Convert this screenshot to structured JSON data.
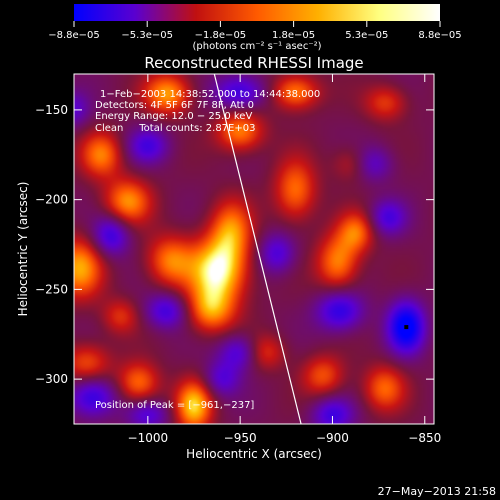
{
  "chart_data": {
    "type": "heatmap",
    "title": "Reconstructed RHESSI Image",
    "xlabel": "Heliocentric X (arcsec)",
    "ylabel": "Heliocentric Y (arcsec)",
    "xlim": [
      -1040,
      -845
    ],
    "ylim": [
      -325,
      -130
    ],
    "xticks": [
      -1000,
      -950,
      -900,
      -850
    ],
    "yticks": [
      -150,
      -200,
      -250,
      -300
    ],
    "xtick_labels": [
      "−1000",
      "−950",
      "−900",
      "−850"
    ],
    "ytick_labels": [
      "−150",
      "−200",
      "−250",
      "−300"
    ],
    "colorbar": {
      "min": -8.8e-05,
      "max": 8.8e-05,
      "tick_labels": [
        "−8.8e−05",
        "−5.3e−05",
        "−1.8e−05",
        "1.8e−05",
        "5.3e−05",
        "8.8e−05"
      ],
      "units_label": "(photons cm⁻² s⁻¹ asec⁻²)",
      "colors": [
        "#0000ff",
        "#5a00d0",
        "#c01010",
        "#ff5a00",
        "#ffb000",
        "#ffff80",
        "#ffffff"
      ]
    },
    "annotations": [
      "1−Feb−2003 14:38:52.000 to 14:44:38.000",
      "Detectors: 4F 5F 6F 7F 8F, Att 0",
      "Energy Range: 12.0 − 25.0 keV",
      "Clean     Total counts: 2.87E+03",
      "Position of Peak = [−961,−237]"
    ],
    "peak": {
      "x": -961,
      "y": -237
    },
    "limb": [
      [
        -964,
        -130
      ],
      [
        -917,
        -325
      ]
    ],
    "blobs": [
      {
        "x": -962,
        "y": -240,
        "v": 8.8e-05,
        "sx": 11,
        "sy": 13
      },
      {
        "x": -955,
        "y": -217,
        "v": 5.5e-05,
        "sx": 8,
        "sy": 12
      },
      {
        "x": -966,
        "y": -262,
        "v": 5.5e-05,
        "sx": 9,
        "sy": 9
      },
      {
        "x": -988,
        "y": -234,
        "v": 5.5e-05,
        "sx": 9,
        "sy": 10
      },
      {
        "x": -1011,
        "y": -201,
        "v": 6e-05,
        "sx": 9,
        "sy": 9
      },
      {
        "x": -1025,
        "y": -175,
        "v": 5.5e-05,
        "sx": 8,
        "sy": 9
      },
      {
        "x": -1037,
        "y": -238,
        "v": 6.5e-05,
        "sx": 9,
        "sy": 12
      },
      {
        "x": -1033,
        "y": -291,
        "v": 4.5e-05,
        "sx": 9,
        "sy": 8
      },
      {
        "x": -1005,
        "y": -302,
        "v": 5.5e-05,
        "sx": 8,
        "sy": 8
      },
      {
        "x": -975,
        "y": -315,
        "v": 7.5e-05,
        "sx": 7,
        "sy": 10
      },
      {
        "x": -989,
        "y": -141,
        "v": 6.5e-05,
        "sx": 9,
        "sy": 8
      },
      {
        "x": -950,
        "y": -162,
        "v": 6e-05,
        "sx": 9,
        "sy": 8
      },
      {
        "x": -920,
        "y": -195,
        "v": 5.5e-05,
        "sx": 8,
        "sy": 12
      },
      {
        "x": -920,
        "y": -140,
        "v": 6e-05,
        "sx": 9,
        "sy": 7
      },
      {
        "x": -897,
        "y": -235,
        "v": 6e-05,
        "sx": 8,
        "sy": 11
      },
      {
        "x": -887,
        "y": -218,
        "v": 5e-05,
        "sx": 7,
        "sy": 8
      },
      {
        "x": -905,
        "y": -298,
        "v": 4.5e-05,
        "sx": 8,
        "sy": 8
      },
      {
        "x": -872,
        "y": -305,
        "v": 5e-05,
        "sx": 8,
        "sy": 9
      },
      {
        "x": -887,
        "y": -180,
        "v": 4.5e-05,
        "sx": 8,
        "sy": 7
      },
      {
        "x": -871,
        "y": -146,
        "v": 4e-05,
        "sx": 8,
        "sy": 7
      },
      {
        "x": -937,
        "y": -285,
        "v": 4e-05,
        "sx": 8,
        "sy": 7
      },
      {
        "x": -1015,
        "y": -265,
        "v": 3.5e-05,
        "sx": 7,
        "sy": 7
      },
      {
        "x": -860,
        "y": -271,
        "v": -8.8e-05,
        "sx": 7,
        "sy": 10
      },
      {
        "x": -1020,
        "y": -220,
        "v": -5.5e-05,
        "sx": 7,
        "sy": 8
      },
      {
        "x": -950,
        "y": -140,
        "v": -5.5e-05,
        "sx": 10,
        "sy": 7
      },
      {
        "x": -880,
        "y": -180,
        "v": -5.5e-05,
        "sx": 8,
        "sy": 7
      },
      {
        "x": -896,
        "y": -262,
        "v": -6e-05,
        "sx": 9,
        "sy": 8
      },
      {
        "x": -950,
        "y": -285,
        "v": -5e-05,
        "sx": 8,
        "sy": 7
      },
      {
        "x": -1030,
        "y": -310,
        "v": -6e-05,
        "sx": 9,
        "sy": 8
      },
      {
        "x": -990,
        "y": -262,
        "v": -5e-05,
        "sx": 8,
        "sy": 7
      },
      {
        "x": -930,
        "y": -230,
        "v": -4.5e-05,
        "sx": 7,
        "sy": 8
      },
      {
        "x": -1000,
        "y": -170,
        "v": -4.5e-05,
        "sx": 8,
        "sy": 7
      },
      {
        "x": -870,
        "y": -210,
        "v": -4.5e-05,
        "sx": 7,
        "sy": 7
      },
      {
        "x": -960,
        "y": -300,
        "v": -4e-05,
        "sx": 7,
        "sy": 7
      },
      {
        "x": -900,
        "y": -320,
        "v": -5e-05,
        "sx": 8,
        "sy": 7
      },
      {
        "x": -1000,
        "y": -320,
        "v": -4e-05,
        "sx": 8,
        "sy": 6
      },
      {
        "x": -1040,
        "y": -150,
        "v": -3.5e-05,
        "sx": 6,
        "sy": 7
      }
    ]
  },
  "footer": {
    "timestamp": "27−May−2013 21:58"
  }
}
